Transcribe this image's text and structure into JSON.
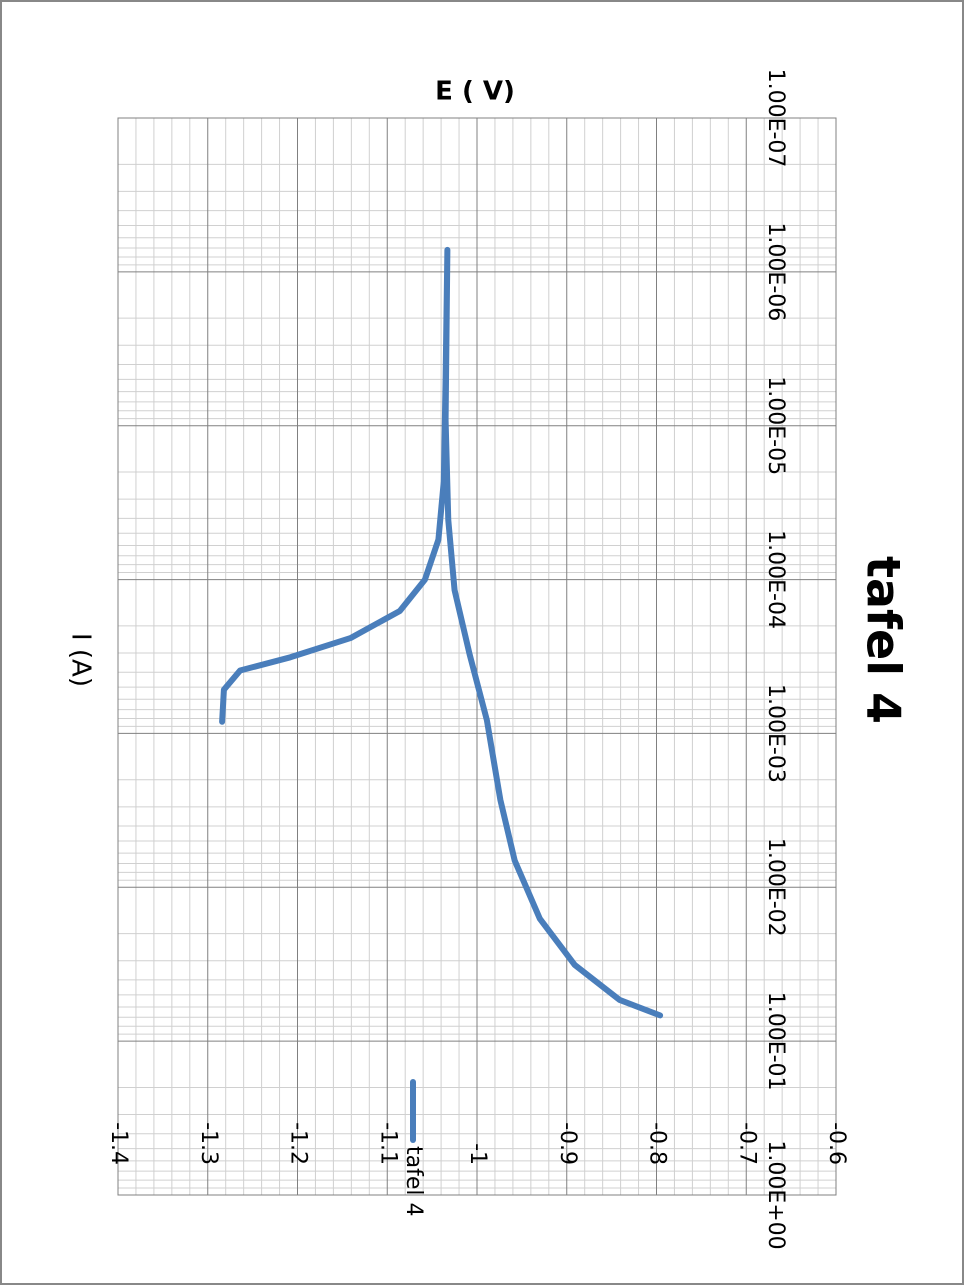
{
  "chart_data": {
    "type": "line",
    "title": "tafel 4",
    "x_label": "I (A)",
    "y_label": "E ( V)",
    "x": [
      0.00084,
      0.00052,
      0.00039,
      0.00032,
      0.00024,
      0.00016,
      0.0001,
      5.5e-05,
      2.3e-05,
      5e-06,
      7.2e-07,
      9.2e-06,
      4.1e-05,
      0.000117,
      0.00031,
      0.00082,
      0.0027,
      0.0067,
      0.016,
      0.032,
      0.054,
      0.068
    ],
    "series": [
      {
        "name": "tafel 4",
        "color": "#4a7ebb",
        "values": [
          -1.284,
          -1.282,
          -1.264,
          -1.208,
          -1.141,
          -1.086,
          -1.058,
          -1.043,
          -1.037,
          -1.035,
          -1.033,
          -1.035,
          -1.032,
          -1.025,
          -1.008,
          -0.989,
          -0.974,
          -0.958,
          -0.93,
          -0.891,
          -0.841,
          -0.796
        ]
      }
    ],
    "xlim": [
      1e-07,
      1
    ],
    "xticks": [
      {
        "value": 1e-07,
        "label": "1.00E-07"
      },
      {
        "value": 1e-06,
        "label": "1.00E-06"
      },
      {
        "value": 1e-05,
        "label": "1.00E-05"
      },
      {
        "value": 0.0001,
        "label": "1.00E-04"
      },
      {
        "value": 0.001,
        "label": "1.00E-03"
      },
      {
        "value": 0.01,
        "label": "1.00E-02"
      },
      {
        "value": 0.1,
        "label": "1.00E-01"
      },
      {
        "value": 1,
        "label": "1.00E+00"
      }
    ],
    "ylim": [
      -1.4,
      -0.6
    ],
    "yticks": [
      -1.4,
      -1.3,
      -1.2,
      -1.1,
      -1,
      -0.9,
      -0.8,
      -0.7,
      -0.6
    ],
    "x_log": true,
    "grid": true,
    "minor_grid": true,
    "legend": "right"
  }
}
